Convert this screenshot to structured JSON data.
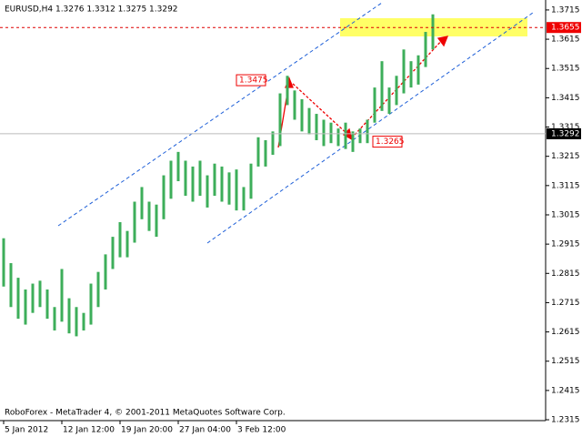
{
  "chart_data": {
    "type": "range-bar",
    "title": "EURUSD,H4  1.3276 1.3312 1.3275 1.3292",
    "footer": "RoboForex - MetaTrader 4, © 2001-2011 MetaQuotes Software Corp.",
    "categories": [
      "5 Jan 2012",
      null,
      null,
      null,
      null,
      null,
      null,
      null,
      "12 Jan 12:00",
      null,
      null,
      null,
      null,
      null,
      null,
      null,
      "19 Jan 20:00",
      null,
      null,
      null,
      null,
      null,
      null,
      null,
      "27 Jan 04:00",
      null,
      null,
      null,
      null,
      null,
      null,
      null,
      "3 Feb 12:00",
      null,
      null,
      null,
      null,
      null,
      null,
      null,
      null,
      null,
      null,
      null,
      null,
      null,
      null,
      null,
      null,
      null,
      null,
      null,
      null,
      null,
      null,
      null,
      null,
      null,
      null,
      null
    ],
    "series": [
      {
        "color": "#3dae5a",
        "high": [
          1.2935,
          1.285,
          1.28,
          1.276,
          1.278,
          1.279,
          1.276,
          1.27,
          1.283,
          1.273,
          1.27,
          1.268,
          1.278,
          1.282,
          1.288,
          1.294,
          1.299,
          1.296,
          1.306,
          1.311,
          1.306,
          1.305,
          1.315,
          1.32,
          1.323,
          1.32,
          1.318,
          1.32,
          1.315,
          1.319,
          1.318,
          1.316,
          1.317,
          1.311,
          1.319,
          1.328,
          1.327,
          1.33,
          1.343,
          1.349,
          1.344,
          1.341,
          1.338,
          1.336,
          1.334,
          1.333,
          1.331,
          1.333,
          1.33,
          1.331,
          1.334,
          1.345,
          1.354,
          1.345,
          1.349,
          1.358,
          1.354,
          1.356,
          1.364,
          1.37
        ],
        "low": [
          1.277,
          1.27,
          1.266,
          1.264,
          1.268,
          1.27,
          1.266,
          1.262,
          1.265,
          1.261,
          1.26,
          1.262,
          1.264,
          1.27,
          1.276,
          1.283,
          1.287,
          1.287,
          1.292,
          1.3,
          1.296,
          1.294,
          1.3,
          1.307,
          1.313,
          1.308,
          1.306,
          1.308,
          1.304,
          1.308,
          1.306,
          1.305,
          1.303,
          1.303,
          1.307,
          1.318,
          1.318,
          1.322,
          1.325,
          1.339,
          1.334,
          1.33,
          1.329,
          1.327,
          1.325,
          1.326,
          1.325,
          1.324,
          1.323,
          1.326,
          1.326,
          1.333,
          1.337,
          1.336,
          1.339,
          1.343,
          1.345,
          1.346,
          1.352,
          1.358
        ]
      }
    ],
    "ylim": [
      1.2312,
      1.3749
    ],
    "yticks": [
      1.2315,
      1.2415,
      1.2515,
      1.2615,
      1.2715,
      1.2815,
      1.2915,
      1.3015,
      1.3115,
      1.3215,
      1.3315,
      1.3415,
      1.3515,
      1.3615,
      1.3715
    ],
    "current_price": 1.3292,
    "level": 1.3655,
    "price_labels": [
      1.3475,
      1.3265
    ]
  }
}
